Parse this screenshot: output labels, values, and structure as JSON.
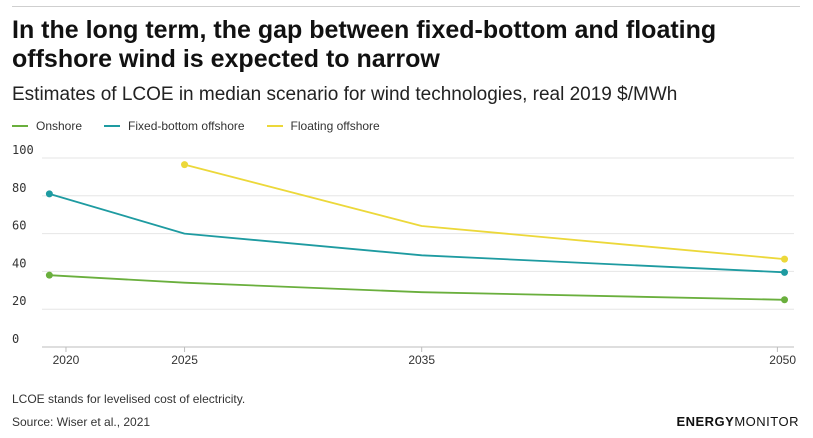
{
  "header": {
    "title": "In the long term, the gap between fixed-bottom and floating offshore wind is expected to narrow",
    "subtitle": "Estimates of LCOE in median scenario for wind technologies, real 2019 $/MWh"
  },
  "footer": {
    "note": "LCOE stands for levelised cost of electricity.",
    "source": "Source: Wiser et al., 2021",
    "brand_bold": "ENERGY",
    "brand_light": "MONITOR"
  },
  "chart_data": {
    "type": "line",
    "title": "In the long term, the gap between fixed-bottom and floating offshore wind is expected to narrow",
    "subtitle": "Estimates of LCOE in median scenario for wind technologies, real 2019 $/MWh",
    "xlabel": "",
    "ylabel": "",
    "x_ticks": [
      2020,
      2025,
      2035,
      2050
    ],
    "xlim": [
      2019.2,
      2050.7
    ],
    "y_ticks": [
      0,
      20,
      40,
      60,
      80,
      100
    ],
    "ylim": [
      0,
      100
    ],
    "grid": true,
    "legend_position": "top-left",
    "series": [
      {
        "name": "Onshore",
        "color": "#6aaf3d",
        "x": [
          2019.3,
          2025,
          2035,
          2050.3
        ],
        "values": [
          38,
          34,
          29,
          25
        ],
        "markers": "endpoints"
      },
      {
        "name": "Fixed-bottom offshore",
        "color": "#1e9ba1",
        "x": [
          2019.3,
          2025,
          2035,
          2050.3
        ],
        "values": [
          81,
          60,
          48.5,
          39.5
        ],
        "markers": "endpoints"
      },
      {
        "name": "Floating offshore",
        "color": "#ecd83a",
        "x": [
          2025,
          2035,
          2050.3
        ],
        "values": [
          96.5,
          64,
          46.5
        ],
        "markers": "endpoints"
      }
    ]
  }
}
